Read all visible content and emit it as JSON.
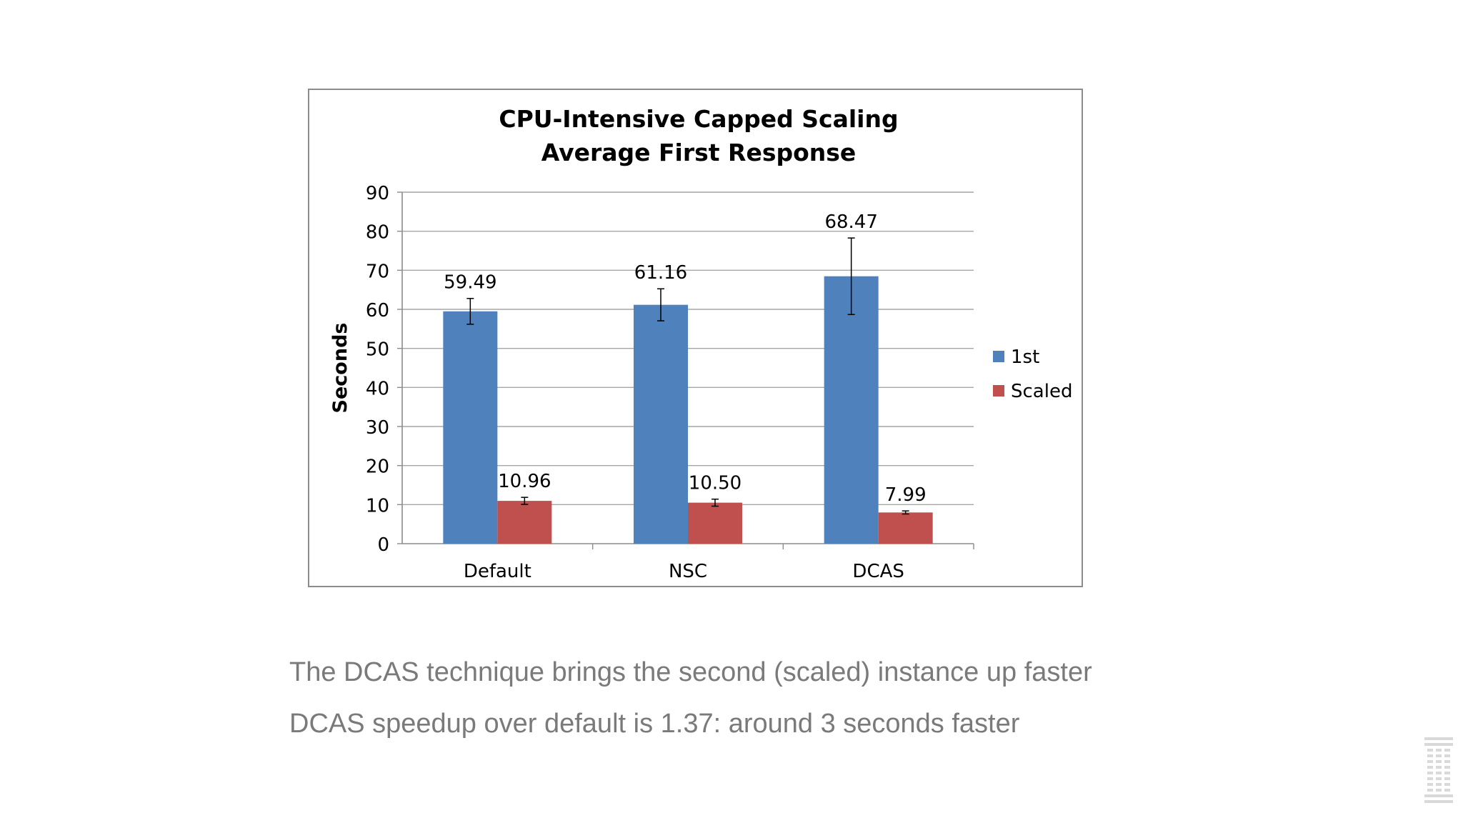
{
  "chart_data": {
    "type": "bar",
    "title_lines": [
      "CPU-Intensive Capped Scaling",
      "Average First Response"
    ],
    "xlabel": "",
    "ylabel": "Seconds",
    "ylim": [
      0,
      90
    ],
    "yticks": [
      "0",
      "10",
      "20",
      "30",
      "40",
      "50",
      "60",
      "70",
      "80",
      "90"
    ],
    "grid": true,
    "legend_position": "right",
    "categories": [
      "Default",
      "NSC",
      "DCAS"
    ],
    "series": [
      {
        "name": "1st",
        "color": "#4f81bd",
        "values": [
          59.49,
          61.16,
          68.47
        ],
        "labels": [
          "59.49",
          "61.16",
          "68.47"
        ],
        "error": [
          3.3,
          4.1,
          9.8
        ]
      },
      {
        "name": "Scaled",
        "color": "#c0504d",
        "values": [
          10.96,
          10.5,
          7.99
        ],
        "labels": [
          "10.96",
          "10.50",
          "7.99"
        ],
        "error": [
          0.9,
          0.9,
          0.4
        ]
      }
    ]
  },
  "bullets": [
    "The DCAS technique brings the second (scaled) instance up faster",
    "DCAS speedup over default is 1.37: around 3 seconds faster"
  ],
  "logo": {
    "icon": "ibm-logo-icon",
    "color": "#d9d9d9"
  }
}
